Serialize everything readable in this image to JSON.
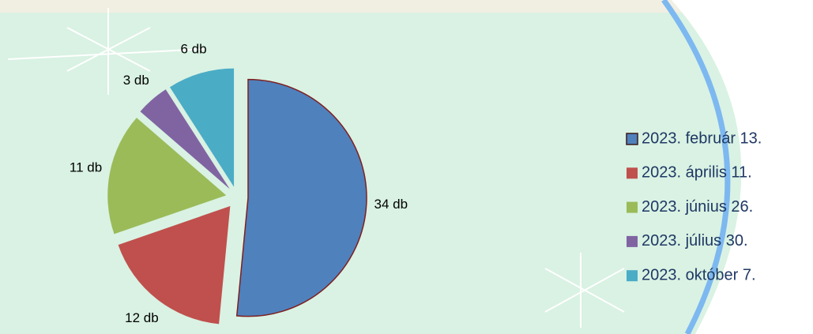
{
  "chart_data": {
    "type": "pie",
    "categories": [
      "2023. február 13.",
      "2023. április 11.",
      "2023. június 26.",
      "2023. július 30.",
      "2023. október 7."
    ],
    "values": [
      34,
      12,
      11,
      3,
      6
    ],
    "value_labels": [
      "34 db",
      "12 db",
      "11 db",
      "3 db",
      "6 db"
    ],
    "colors": [
      "#4f81bd",
      "#c0504d",
      "#9bbb59",
      "#8064a2",
      "#4bacc6"
    ]
  }
}
